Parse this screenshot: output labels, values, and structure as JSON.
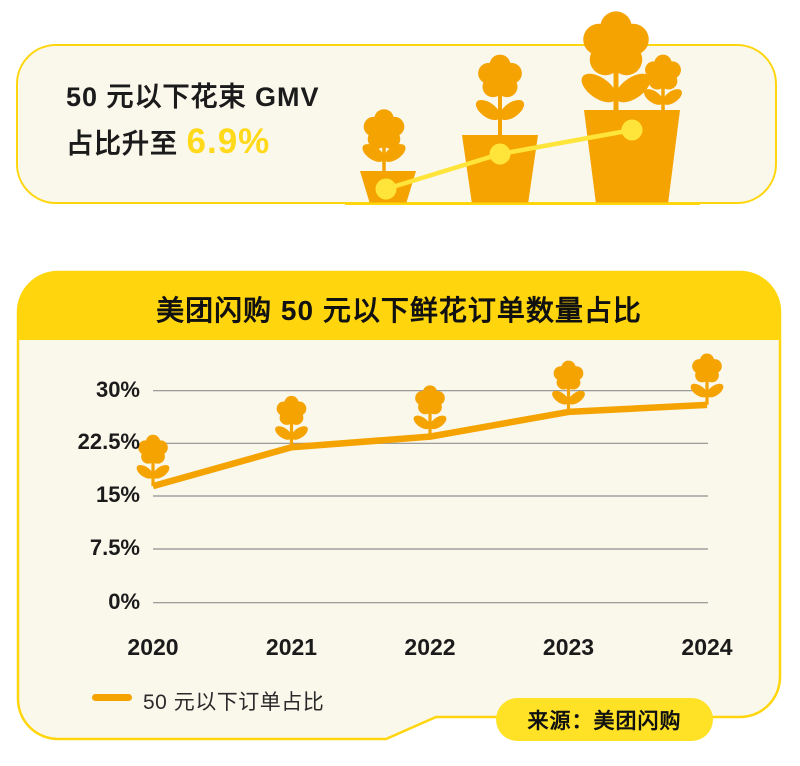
{
  "top_card": {
    "line1": "50 元以下花束 GMV",
    "line2_prefix": "占比升至 ",
    "line2_highlight": "6.9%"
  },
  "chart_card": {
    "title": "美团闪购 50 元以下鲜花订单数量占比",
    "legend_label": "50 元以下订单占比",
    "source_badge": "来源：美团闪购"
  },
  "chart_data": {
    "type": "line",
    "title": "美团闪购 50 元以下鲜花订单数量占比",
    "categories": [
      "2020",
      "2021",
      "2022",
      "2023",
      "2024"
    ],
    "series": [
      {
        "name": "50 元以下订单占比",
        "values": [
          16.5,
          22,
          23.5,
          27,
          28
        ]
      }
    ],
    "unit": "%",
    "ylim": [
      0,
      30
    ],
    "yticks": [
      "30%",
      "22.5%",
      "15%",
      "7.5%",
      "0%"
    ],
    "grid": true,
    "legend_position": "bottom-left",
    "marker": "flower-icon"
  },
  "colors": {
    "card_yellow": "#FFD60E",
    "accent_line_yellow": "#FFE43A",
    "badge_yellow": "#FFE226",
    "flower_orange": "#F5A300",
    "cream_background": "#FAF7EB",
    "grid_gray": "#8F8F8F",
    "text_black": "#1B1B1B",
    "highlight_yellow": "#FFD91A"
  }
}
